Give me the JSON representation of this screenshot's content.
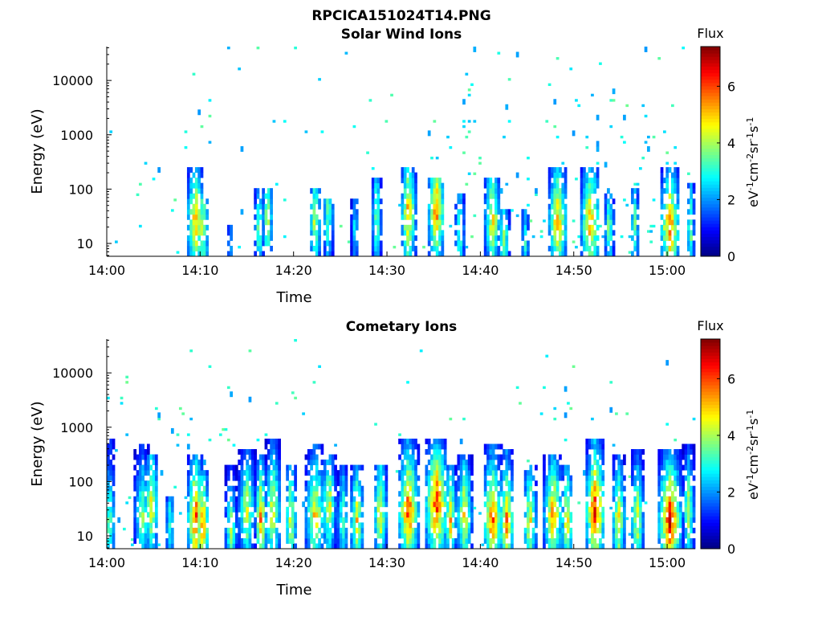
{
  "figure_title": "RPCICA151024T14.PNG",
  "colorbar": {
    "label": "Flux",
    "unit_base": "eV",
    "unit_parts": [
      {
        "t": "eV",
        "sup": "-1"
      },
      {
        "t": "cm",
        "sup": "-2"
      },
      {
        "t": "sr",
        "sup": "-1"
      },
      {
        "t": "s",
        "sup": "-1"
      }
    ],
    "ticks": [
      "0",
      "2",
      "4",
      "6"
    ],
    "range": [
      0,
      7.4
    ],
    "colormap": "jet"
  },
  "chart_data": [
    {
      "type": "heatmap",
      "title": "Solar Wind Ions",
      "xlabel": "Time",
      "ylabel": "Energy (eV)",
      "x_ticks": [
        "14:00",
        "14:10",
        "14:20",
        "14:30",
        "14:40",
        "14:50",
        "15:00"
      ],
      "x_range_min": [
        0,
        63
      ],
      "y_scale": "log",
      "y_ticks": [
        "10",
        "100",
        "1000",
        "10000"
      ],
      "y_range": [
        5.8,
        42000
      ],
      "colorbar_label": "Flux",
      "bursts": [
        {
          "t": 9.5,
          "e": 25,
          "w": 0.9,
          "hi": 250,
          "peak": 5.5
        },
        {
          "t": 10.3,
          "e": 20,
          "w": 0.6,
          "hi": 60,
          "peak": 4.8
        },
        {
          "t": 13.2,
          "e": 10,
          "w": 0.3,
          "hi": 20,
          "peak": 2.6
        },
        {
          "t": 16.3,
          "e": 18,
          "w": 0.5,
          "hi": 100,
          "peak": 3.8
        },
        {
          "t": 17.2,
          "e": 30,
          "w": 0.5,
          "hi": 100,
          "peak": 4.8
        },
        {
          "t": 22.3,
          "e": 25,
          "w": 0.6,
          "hi": 100,
          "peak": 4.5
        },
        {
          "t": 23.7,
          "e": 35,
          "w": 0.6,
          "hi": 60,
          "peak": 3.8
        },
        {
          "t": 26.6,
          "e": 20,
          "w": 0.4,
          "hi": 60,
          "peak": 3.0
        },
        {
          "t": 28.9,
          "e": 30,
          "w": 0.5,
          "hi": 170,
          "peak": 4.2
        },
        {
          "t": 32.3,
          "e": 35,
          "w": 0.8,
          "hi": 250,
          "peak": 5.5
        },
        {
          "t": 35.3,
          "e": 40,
          "w": 0.9,
          "hi": 180,
          "peak": 5.7
        },
        {
          "t": 37.8,
          "e": 18,
          "w": 0.5,
          "hi": 80,
          "peak": 3.8
        },
        {
          "t": 41.3,
          "e": 30,
          "w": 0.8,
          "hi": 180,
          "peak": 5.2
        },
        {
          "t": 42.5,
          "e": 12,
          "w": 0.6,
          "hi": 40,
          "peak": 4.2
        },
        {
          "t": 44.8,
          "e": 10,
          "w": 0.5,
          "hi": 40,
          "peak": 3.0
        },
        {
          "t": 48.3,
          "e": 25,
          "w": 1.0,
          "hi": 250,
          "peak": 5.5
        },
        {
          "t": 51.8,
          "e": 25,
          "w": 1.0,
          "hi": 250,
          "peak": 5.6
        },
        {
          "t": 53.8,
          "e": 20,
          "w": 0.5,
          "hi": 100,
          "peak": 4.0
        },
        {
          "t": 56.5,
          "e": 20,
          "w": 0.5,
          "hi": 100,
          "peak": 3.8
        },
        {
          "t": 60.3,
          "e": 20,
          "w": 1.0,
          "hi": 250,
          "peak": 6.0
        },
        {
          "t": 62.5,
          "e": 20,
          "w": 0.4,
          "hi": 120,
          "peak": 4.2
        }
      ]
    },
    {
      "type": "heatmap",
      "title": "Cometary Ions",
      "xlabel": "Time",
      "ylabel": "Energy (eV)",
      "x_ticks": [
        "14:00",
        "14:10",
        "14:20",
        "14:30",
        "14:40",
        "14:50",
        "15:00"
      ],
      "x_range_min": [
        0,
        63
      ],
      "y_scale": "log",
      "y_ticks": [
        "10",
        "100",
        "1000",
        "10000"
      ],
      "y_range": [
        5.8,
        42000
      ],
      "colorbar_label": "Flux",
      "bursts": [
        {
          "t": 0.3,
          "e": 18,
          "w": 0.6,
          "hi": 600,
          "peak": 4.2
        },
        {
          "t": 3.8,
          "e": 25,
          "w": 0.8,
          "hi": 500,
          "peak": 4.2
        },
        {
          "t": 4.8,
          "e": 38,
          "w": 0.7,
          "hi": 300,
          "peak": 5.0
        },
        {
          "t": 6.8,
          "e": 15,
          "w": 0.5,
          "hi": 50,
          "peak": 3.5
        },
        {
          "t": 9.5,
          "e": 22,
          "w": 0.8,
          "hi": 300,
          "peak": 6.5
        },
        {
          "t": 10.3,
          "e": 15,
          "w": 0.6,
          "hi": 150,
          "peak": 6.0
        },
        {
          "t": 13.3,
          "e": 12,
          "w": 0.6,
          "hi": 200,
          "peak": 4.2
        },
        {
          "t": 15.0,
          "e": 30,
          "w": 0.9,
          "hi": 400,
          "peak": 4.5
        },
        {
          "t": 16.5,
          "e": 20,
          "w": 0.6,
          "hi": 300,
          "peak": 5.7
        },
        {
          "t": 17.8,
          "e": 30,
          "w": 0.8,
          "hi": 600,
          "peak": 5.0
        },
        {
          "t": 19.7,
          "e": 20,
          "w": 0.6,
          "hi": 200,
          "peak": 5.0
        },
        {
          "t": 22.3,
          "e": 25,
          "w": 1.0,
          "hi": 500,
          "peak": 5.2
        },
        {
          "t": 23.8,
          "e": 35,
          "w": 0.7,
          "hi": 300,
          "peak": 4.8
        },
        {
          "t": 25.3,
          "e": 20,
          "w": 0.6,
          "hi": 200,
          "peak": 3.8
        },
        {
          "t": 26.8,
          "e": 18,
          "w": 0.7,
          "hi": 200,
          "peak": 5.0
        },
        {
          "t": 29.3,
          "e": 25,
          "w": 0.7,
          "hi": 200,
          "peak": 5.0
        },
        {
          "t": 32.3,
          "e": 30,
          "w": 1.1,
          "hi": 600,
          "peak": 6.2
        },
        {
          "t": 35.3,
          "e": 40,
          "w": 1.2,
          "hi": 600,
          "peak": 6.5
        },
        {
          "t": 36.8,
          "e": 20,
          "w": 0.6,
          "hi": 200,
          "peak": 5.2
        },
        {
          "t": 38.3,
          "e": 25,
          "w": 0.8,
          "hi": 300,
          "peak": 5.0
        },
        {
          "t": 41.3,
          "e": 20,
          "w": 1.0,
          "hi": 500,
          "peak": 6.2
        },
        {
          "t": 42.8,
          "e": 18,
          "w": 0.8,
          "hi": 400,
          "peak": 5.7
        },
        {
          "t": 45.3,
          "e": 18,
          "w": 0.7,
          "hi": 200,
          "peak": 5.0
        },
        {
          "t": 47.8,
          "e": 25,
          "w": 1.0,
          "hi": 300,
          "peak": 5.5
        },
        {
          "t": 49.3,
          "e": 20,
          "w": 0.6,
          "hi": 200,
          "peak": 5.2
        },
        {
          "t": 52.3,
          "e": 30,
          "w": 1.0,
          "hi": 600,
          "peak": 6.8
        },
        {
          "t": 54.8,
          "e": 20,
          "w": 0.7,
          "hi": 300,
          "peak": 5.0
        },
        {
          "t": 56.8,
          "e": 20,
          "w": 0.7,
          "hi": 400,
          "peak": 4.8
        },
        {
          "t": 60.3,
          "e": 20,
          "w": 1.2,
          "hi": 400,
          "peak": 6.8
        },
        {
          "t": 62.3,
          "e": 30,
          "w": 0.6,
          "hi": 500,
          "peak": 4.5
        }
      ]
    }
  ]
}
